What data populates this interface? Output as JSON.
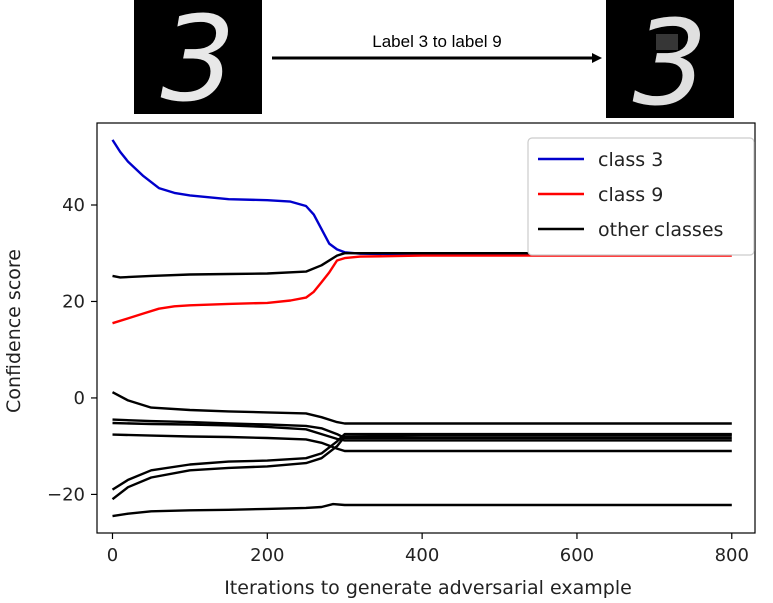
{
  "header": {
    "arrow_label": "Label 3 to label 9",
    "digit_before": "3",
    "digit_after": "3"
  },
  "chart_data": {
    "type": "line",
    "title": "",
    "xlabel": "Iterations to generate adversarial example",
    "ylabel": "Confidence score",
    "xlim": [
      -20,
      830
    ],
    "ylim": [
      -28,
      57
    ],
    "xticks": [
      0,
      200,
      400,
      600,
      800
    ],
    "yticks": [
      -20,
      0,
      20,
      40
    ],
    "grid": false,
    "legend_position": "top-right",
    "series": [
      {
        "name": "class 3",
        "color": "#0000cc",
        "x": [
          0,
          10,
          20,
          40,
          60,
          80,
          100,
          150,
          200,
          230,
          250,
          260,
          270,
          280,
          290,
          300,
          320,
          400,
          500,
          600,
          700,
          800
        ],
        "y": [
          53.5,
          51,
          49,
          46,
          43.5,
          42.5,
          42,
          41.2,
          41,
          40.7,
          39.8,
          38,
          35,
          32,
          30.8,
          30.2,
          29.9,
          29.8,
          29.8,
          29.8,
          29.8,
          29.8
        ]
      },
      {
        "name": "class 9",
        "color": "#ff0000",
        "x": [
          0,
          20,
          40,
          60,
          80,
          100,
          150,
          200,
          230,
          250,
          260,
          270,
          280,
          290,
          300,
          320,
          400,
          500,
          600,
          700,
          800
        ],
        "y": [
          15.5,
          16.5,
          17.5,
          18.5,
          19,
          19.2,
          19.5,
          19.7,
          20.2,
          20.8,
          22,
          24,
          26,
          28.5,
          29,
          29.3,
          29.5,
          29.5,
          29.5,
          29.5,
          29.5
        ]
      },
      {
        "name": "other classes",
        "color": "#000000",
        "x": [
          0,
          10,
          50,
          100,
          150,
          200,
          250,
          270,
          290,
          300,
          400,
          800
        ],
        "y": [
          25.3,
          25,
          25.3,
          25.6,
          25.7,
          25.8,
          26.2,
          27.5,
          29.5,
          30,
          30,
          30
        ]
      },
      {
        "name": "",
        "color": "#000000",
        "x": [
          0,
          20,
          50,
          100,
          150,
          200,
          250,
          270,
          290,
          300,
          400,
          800
        ],
        "y": [
          1.2,
          -0.5,
          -2,
          -2.5,
          -2.8,
          -3,
          -3.2,
          -4,
          -5,
          -5.3,
          -5.3,
          -5.3
        ]
      },
      {
        "name": "",
        "color": "#000000",
        "x": [
          0,
          50,
          100,
          150,
          200,
          250,
          270,
          290,
          300,
          400,
          800
        ],
        "y": [
          -4.5,
          -4.8,
          -5,
          -5.3,
          -5.5,
          -5.8,
          -6.3,
          -7.5,
          -8.3,
          -8.3,
          -8.3
        ]
      },
      {
        "name": "",
        "color": "#000000",
        "x": [
          0,
          50,
          100,
          150,
          200,
          250,
          270,
          290,
          300,
          400,
          800
        ],
        "y": [
          -5.2,
          -5.4,
          -5.5,
          -5.7,
          -6,
          -6.5,
          -7.5,
          -8.5,
          -8.8,
          -8.8,
          -8.8
        ]
      },
      {
        "name": "",
        "color": "#000000",
        "x": [
          0,
          50,
          100,
          150,
          200,
          250,
          270,
          290,
          300,
          400,
          800
        ],
        "y": [
          -7.6,
          -7.8,
          -8,
          -8.1,
          -8.3,
          -8.6,
          -9.3,
          -10.5,
          -11,
          -11,
          -11
        ]
      },
      {
        "name": "",
        "color": "#000000",
        "x": [
          0,
          20,
          50,
          100,
          150,
          200,
          250,
          270,
          290,
          300,
          400,
          800
        ],
        "y": [
          -19,
          -17,
          -15,
          -13.8,
          -13.2,
          -13,
          -12.5,
          -11.5,
          -9,
          -7.5,
          -7.5,
          -7.5
        ]
      },
      {
        "name": "",
        "color": "#000000",
        "x": [
          0,
          20,
          50,
          100,
          150,
          200,
          250,
          270,
          290,
          300,
          400,
          800
        ],
        "y": [
          -21,
          -18.5,
          -16.5,
          -15,
          -14.5,
          -14.2,
          -13.5,
          -12.5,
          -10,
          -8,
          -7.8,
          -7.8
        ]
      },
      {
        "name": "",
        "color": "#000000",
        "x": [
          0,
          20,
          50,
          100,
          150,
          200,
          250,
          270,
          285,
          300,
          400,
          800
        ],
        "y": [
          -24.5,
          -24,
          -23.5,
          -23.3,
          -23.2,
          -23,
          -22.8,
          -22.6,
          -22,
          -22.2,
          -22.2,
          -22.2
        ]
      }
    ]
  }
}
